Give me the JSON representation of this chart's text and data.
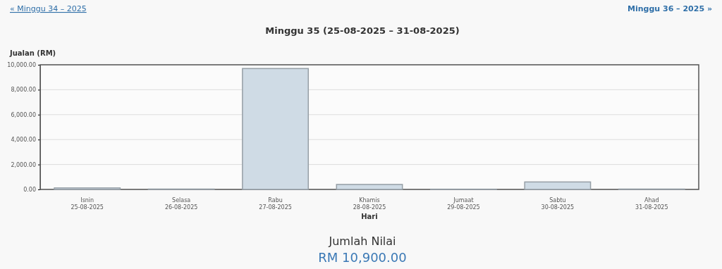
{
  "chart_data": {
    "type": "bar",
    "title": "Minggu 35 (25-08-2025 – 31-08-2025)",
    "ylabel": "Jualan (RM)",
    "xlabel": "Hari",
    "categories": [
      "Isnin\n25-08-2025",
      "Selasa\n26-08-2025",
      "Rabu\n27-08-2025",
      "Khamis\n28-08-2025",
      "Jumaat\n29-08-2025",
      "Sabtu\n30-08-2025",
      "Ahad\n31-08-2025"
    ],
    "values": [
      120,
      30,
      9700,
      400,
      20,
      600,
      30
    ],
    "color": "#cfdbe5",
    "ylim": [
      0,
      10000
    ],
    "yticks": [
      {
        "value": 0,
        "label": "0.00"
      },
      {
        "value": 2000,
        "label": "2,000.00"
      },
      {
        "value": 4000,
        "label": "4,000.00"
      },
      {
        "value": 6000,
        "label": "6,000.00"
      },
      {
        "value": 8000,
        "label": "8,000.00"
      },
      {
        "value": 10000,
        "label": "10,000.00"
      }
    ],
    "grid": "y",
    "annotations": [
      "« Minggu 34 – 2025",
      "Minggu 36 – 2025 »",
      "Jumlah Nilai",
      "RM 10,900.00"
    ]
  }
}
